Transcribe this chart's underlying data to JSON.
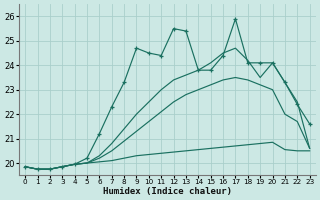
{
  "xlabel": "Humidex (Indice chaleur)",
  "background_color": "#cce8e4",
  "grid_color": "#aacfcb",
  "line_color": "#1a7060",
  "xlim": [
    -0.5,
    23.5
  ],
  "ylim": [
    19.5,
    26.5
  ],
  "yticks": [
    20,
    21,
    22,
    23,
    24,
    25,
    26
  ],
  "xticks": [
    0,
    1,
    2,
    3,
    4,
    5,
    6,
    7,
    8,
    9,
    10,
    11,
    12,
    13,
    14,
    15,
    16,
    17,
    18,
    19,
    20,
    21,
    22,
    23
  ],
  "line_flat_y": [
    19.85,
    19.75,
    19.75,
    19.85,
    19.95,
    20.0,
    20.05,
    20.1,
    20.2,
    20.3,
    20.35,
    20.4,
    20.45,
    20.5,
    20.55,
    20.6,
    20.65,
    20.7,
    20.75,
    20.8,
    20.85,
    20.55,
    20.5,
    20.5
  ],
  "line_low_diag_y": [
    19.85,
    19.75,
    19.75,
    19.85,
    19.95,
    20.0,
    20.2,
    20.5,
    20.9,
    21.3,
    21.7,
    22.1,
    22.5,
    22.8,
    23.0,
    23.2,
    23.4,
    23.5,
    23.4,
    23.2,
    23.0,
    22.0,
    21.7,
    20.6
  ],
  "line_high_diag_y": [
    19.85,
    19.75,
    19.75,
    19.85,
    19.95,
    20.0,
    20.3,
    20.8,
    21.4,
    22.0,
    22.5,
    23.0,
    23.4,
    23.6,
    23.8,
    24.1,
    24.5,
    24.7,
    24.2,
    23.5,
    24.1,
    23.3,
    22.5,
    20.6
  ],
  "line_jagged_y": [
    19.85,
    19.75,
    19.75,
    19.85,
    19.95,
    20.2,
    21.2,
    22.3,
    23.3,
    24.7,
    24.5,
    24.4,
    25.5,
    25.4,
    23.8,
    23.8,
    24.4,
    25.9,
    24.1,
    24.1,
    24.1,
    23.3,
    22.4,
    21.6
  ]
}
